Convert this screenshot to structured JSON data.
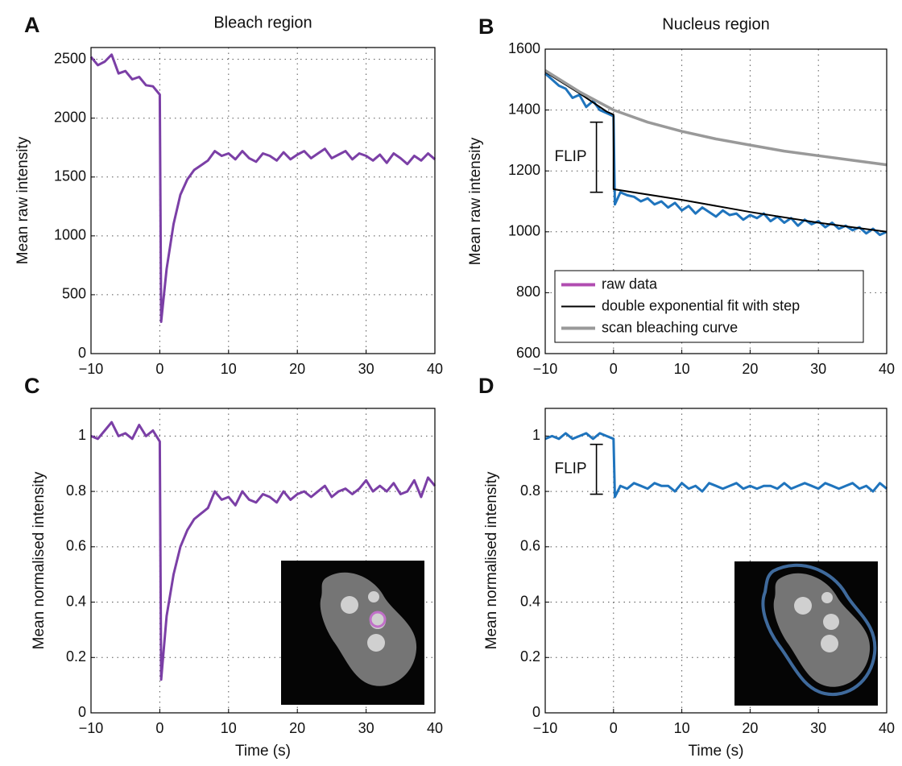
{
  "chart_data": [
    {
      "type": "line",
      "panel_label": "A",
      "title": "Bleach region",
      "ylabel": "Mean raw intensity",
      "x": [
        -10,
        -9,
        -8,
        -7,
        -6,
        -5,
        -4,
        -3,
        -2,
        -1,
        0,
        0.2,
        1,
        2,
        3,
        4,
        5,
        6,
        7,
        8,
        9,
        10,
        11,
        12,
        13,
        14,
        15,
        16,
        17,
        18,
        19,
        20,
        21,
        22,
        23,
        24,
        25,
        26,
        27,
        28,
        29,
        30,
        31,
        32,
        33,
        34,
        35,
        36,
        37,
        38,
        39,
        40
      ],
      "series": [
        {
          "color": "#7b3fa6",
          "values": [
            2520,
            2450,
            2480,
            2540,
            2380,
            2400,
            2330,
            2350,
            2280,
            2270,
            2200,
            270,
            720,
            1100,
            1350,
            1480,
            1560,
            1600,
            1640,
            1720,
            1680,
            1700,
            1650,
            1720,
            1660,
            1630,
            1700,
            1680,
            1640,
            1710,
            1650,
            1690,
            1720,
            1660,
            1700,
            1740,
            1660,
            1690,
            1720,
            1650,
            1700,
            1680,
            1640,
            1690,
            1620,
            1700,
            1660,
            1610,
            1680,
            1640,
            1700,
            1650
          ]
        }
      ],
      "xlim": [
        -10,
        40
      ],
      "xticks": [
        {
          "value": -10,
          "label": "−10"
        },
        0,
        10,
        20,
        30,
        40
      ],
      "ylim": [
        0,
        2600
      ],
      "yticks": [
        0,
        500,
        1000,
        1500,
        2000,
        2500
      ],
      "grid": true
    },
    {
      "type": "line",
      "panel_label": "B",
      "title": "Nucleus region",
      "ylabel": "Mean raw intensity",
      "x": [
        -10,
        -9,
        -8,
        -7,
        -6,
        -5,
        -4,
        -3,
        -2,
        -1,
        0,
        0.2,
        1,
        2,
        3,
        4,
        5,
        6,
        7,
        8,
        9,
        10,
        11,
        12,
        13,
        14,
        15,
        16,
        17,
        18,
        19,
        20,
        21,
        22,
        23,
        24,
        25,
        26,
        27,
        28,
        29,
        30,
        31,
        32,
        33,
        34,
        35,
        36,
        37,
        38,
        39,
        40
      ],
      "series": [
        {
          "name": "raw data",
          "color": "#1f74bd",
          "legend_color": "#b14db1",
          "values": [
            1520,
            1500,
            1480,
            1470,
            1440,
            1450,
            1410,
            1430,
            1400,
            1390,
            1380,
            1090,
            1130,
            1120,
            1115,
            1100,
            1110,
            1090,
            1100,
            1080,
            1095,
            1070,
            1085,
            1060,
            1080,
            1065,
            1050,
            1070,
            1055,
            1060,
            1040,
            1055,
            1045,
            1060,
            1035,
            1050,
            1030,
            1045,
            1020,
            1040,
            1025,
            1035,
            1015,
            1030,
            1010,
            1020,
            1005,
            1015,
            995,
            1010,
            990,
            1000
          ]
        },
        {
          "name": "double exponential fit with step",
          "color": "#000000",
          "x": [
            -10,
            -5,
            -1,
            0,
            0,
            10,
            20,
            30,
            40
          ],
          "values": [
            1525,
            1455,
            1395,
            1385,
            1140,
            1105,
            1065,
            1030,
            1000
          ]
        },
        {
          "name": "scan bleaching curve",
          "color": "#999999",
          "x": [
            -10,
            -5,
            0,
            5,
            10,
            15,
            20,
            25,
            30,
            35,
            40
          ],
          "values": [
            1530,
            1460,
            1400,
            1360,
            1330,
            1305,
            1285,
            1265,
            1250,
            1235,
            1220
          ]
        }
      ],
      "annotation": {
        "text": "FLIP",
        "x": -2.5,
        "y_top": 1360,
        "y_bottom": 1130
      },
      "legend": "lower left",
      "xlim": [
        -10,
        40
      ],
      "xticks": [
        {
          "value": -10,
          "label": "−10"
        },
        0,
        10,
        20,
        30,
        40
      ],
      "ylim": [
        600,
        1600
      ],
      "yticks": [
        600,
        800,
        1000,
        1200,
        1400,
        1600
      ],
      "grid": true
    },
    {
      "type": "line",
      "panel_label": "C",
      "xlabel": "Time (s)",
      "ylabel": "Mean normalised intensity",
      "x": [
        -10,
        -9,
        -8,
        -7,
        -6,
        -5,
        -4,
        -3,
        -2,
        -1,
        0,
        0.2,
        1,
        2,
        3,
        4,
        5,
        6,
        7,
        8,
        9,
        10,
        11,
        12,
        13,
        14,
        15,
        16,
        17,
        18,
        19,
        20,
        21,
        22,
        23,
        24,
        25,
        26,
        27,
        28,
        29,
        30,
        31,
        32,
        33,
        34,
        35,
        36,
        37,
        38,
        39,
        40
      ],
      "series": [
        {
          "color": "#7b3fa6",
          "values": [
            1.0,
            0.99,
            1.02,
            1.05,
            1.0,
            1.01,
            0.99,
            1.04,
            1.0,
            1.02,
            0.98,
            0.12,
            0.35,
            0.5,
            0.6,
            0.66,
            0.7,
            0.72,
            0.74,
            0.8,
            0.77,
            0.78,
            0.75,
            0.8,
            0.77,
            0.76,
            0.79,
            0.78,
            0.76,
            0.8,
            0.77,
            0.79,
            0.8,
            0.78,
            0.8,
            0.82,
            0.78,
            0.8,
            0.81,
            0.79,
            0.81,
            0.84,
            0.8,
            0.82,
            0.8,
            0.83,
            0.79,
            0.8,
            0.84,
            0.78,
            0.85,
            0.82
          ]
        }
      ],
      "xlim": [
        -10,
        40
      ],
      "xticks": [
        {
          "value": -10,
          "label": "−10"
        },
        0,
        10,
        20,
        30,
        40
      ],
      "ylim": [
        0,
        1.1
      ],
      "yticks": [
        0,
        0.2,
        0.4,
        0.6,
        0.8,
        1
      ],
      "grid": true
    },
    {
      "type": "line",
      "panel_label": "D",
      "xlabel": "Time (s)",
      "ylabel": "Mean normalised intensity",
      "x": [
        -10,
        -9,
        -8,
        -7,
        -6,
        -5,
        -4,
        -3,
        -2,
        -1,
        0,
        0.2,
        1,
        2,
        3,
        4,
        5,
        6,
        7,
        8,
        9,
        10,
        11,
        12,
        13,
        14,
        15,
        16,
        17,
        18,
        19,
        20,
        21,
        22,
        23,
        24,
        25,
        26,
        27,
        28,
        29,
        30,
        31,
        32,
        33,
        34,
        35,
        36,
        37,
        38,
        39,
        40
      ],
      "series": [
        {
          "color": "#1f74bd",
          "values": [
            0.99,
            1.0,
            0.99,
            1.01,
            0.99,
            1.0,
            1.01,
            0.99,
            1.01,
            1.0,
            0.99,
            0.78,
            0.82,
            0.81,
            0.83,
            0.82,
            0.81,
            0.83,
            0.82,
            0.82,
            0.8,
            0.83,
            0.81,
            0.82,
            0.8,
            0.83,
            0.82,
            0.81,
            0.82,
            0.83,
            0.81,
            0.82,
            0.81,
            0.82,
            0.82,
            0.81,
            0.83,
            0.81,
            0.82,
            0.83,
            0.82,
            0.81,
            0.83,
            0.82,
            0.81,
            0.82,
            0.83,
            0.81,
            0.82,
            0.8,
            0.83,
            0.81
          ]
        }
      ],
      "annotation": {
        "text": "FLIP",
        "x": -2.5,
        "y_top": 0.97,
        "y_bottom": 0.79
      },
      "xlim": [
        -10,
        40
      ],
      "xticks": [
        {
          "value": -10,
          "label": "−10"
        },
        0,
        10,
        20,
        30,
        40
      ],
      "ylim": [
        0,
        1.1
      ],
      "yticks": [
        0,
        0.2,
        0.4,
        0.6,
        0.8,
        1
      ],
      "grid": true
    }
  ]
}
